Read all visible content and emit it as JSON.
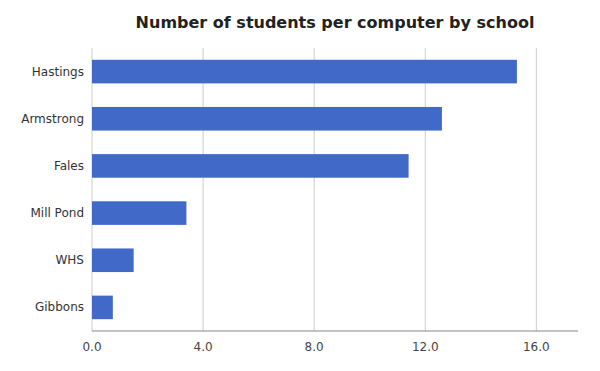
{
  "chart_data": {
    "type": "bar",
    "orientation": "horizontal",
    "title": "Number of students per computer by school",
    "categories": [
      "Gibbons",
      "WHS",
      "Mill Pond",
      "Fales",
      "Armstrong",
      "Hastings"
    ],
    "values": [
      0.75,
      1.5,
      3.4,
      11.4,
      12.6,
      15.3
    ],
    "color": "#4169C8",
    "xlim": [
      0,
      17.5
    ],
    "xticks": [
      {
        "value": 0.0,
        "label": "0.0"
      },
      {
        "value": 4.0,
        "label": "4.0"
      },
      {
        "value": 8.0,
        "label": "8.0"
      },
      {
        "value": 12.0,
        "label": "12.0"
      },
      {
        "value": 16.0,
        "label": "16.0"
      }
    ],
    "grid": true
  }
}
